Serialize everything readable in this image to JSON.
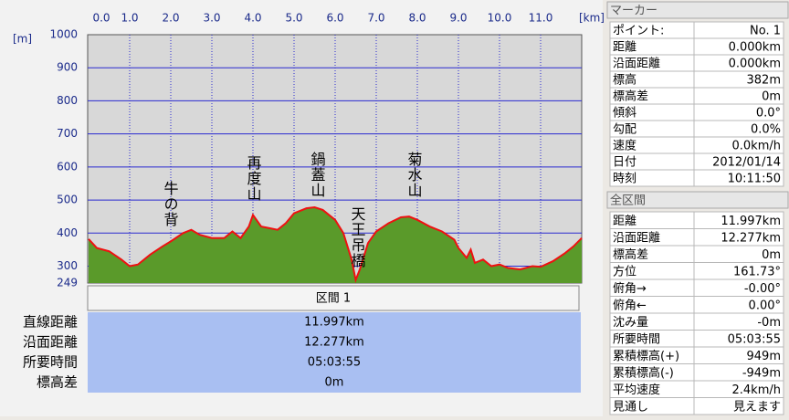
{
  "chart_data": {
    "type": "area",
    "x_label": "[km]",
    "y_label": "[m]",
    "xlim": [
      0,
      12
    ],
    "ylim": [
      249,
      1000
    ],
    "xticks": [
      {
        "value": 0,
        "label": "0.0"
      },
      {
        "value": 1,
        "label": "1.0"
      },
      {
        "value": 2,
        "label": "2.0"
      },
      {
        "value": 3,
        "label": "3.0"
      },
      {
        "value": 4,
        "label": "4.0"
      },
      {
        "value": 5,
        "label": "5.0"
      },
      {
        "value": 6,
        "label": "6.0"
      },
      {
        "value": 7,
        "label": "7.0"
      },
      {
        "value": 8,
        "label": "8.0"
      },
      {
        "value": 9,
        "label": "9.0"
      },
      {
        "value": 10,
        "label": "10.0"
      },
      {
        "value": 11,
        "label": "11.0"
      }
    ],
    "yticks": [
      249,
      300,
      400,
      500,
      600,
      700,
      800,
      900,
      1000
    ],
    "grid": true,
    "x": [
      0,
      0.2,
      0.5,
      0.8,
      1.0,
      1.2,
      1.5,
      1.8,
      2.0,
      2.3,
      2.5,
      2.7,
      3.0,
      3.3,
      3.5,
      3.7,
      3.9,
      4.0,
      4.2,
      4.4,
      4.6,
      4.8,
      5.0,
      5.3,
      5.5,
      5.7,
      6.0,
      6.2,
      6.4,
      6.5,
      6.6,
      6.8,
      7.0,
      7.3,
      7.6,
      7.8,
      8.0,
      8.3,
      8.6,
      8.9,
      9.0,
      9.2,
      9.3,
      9.4,
      9.6,
      9.8,
      10.0,
      10.2,
      10.5,
      10.8,
      11.0,
      11.3,
      11.6,
      11.8,
      12.0
    ],
    "series": [
      {
        "color": "#ee1111",
        "fill": "#5a9a2a",
        "values": [
          382,
          355,
          345,
          320,
          300,
          305,
          335,
          360,
          375,
          400,
          410,
          395,
          385,
          385,
          405,
          385,
          420,
          455,
          420,
          415,
          410,
          430,
          460,
          475,
          478,
          470,
          440,
          400,
          320,
          258,
          290,
          370,
          405,
          430,
          448,
          450,
          440,
          420,
          405,
          380,
          355,
          325,
          350,
          310,
          320,
          300,
          305,
          295,
          290,
          300,
          298,
          315,
          340,
          360,
          385
        ]
      }
    ],
    "annotations": [
      "牛の背",
      "再度山",
      "鍋蓋山",
      "天王吊橋",
      "菊水山"
    ]
  },
  "interval": {
    "title": "区間 1",
    "rows": [
      [
        "直線距離",
        "11.997km"
      ],
      [
        "沿面距離",
        "12.277km"
      ],
      [
        "所要時間",
        "05:03:55"
      ],
      [
        "標高差",
        "0m"
      ]
    ]
  },
  "marker_panel": {
    "title": "マーカー",
    "rows": [
      [
        "ポイント:",
        "No. 1"
      ],
      [
        "距離",
        "0.000km"
      ],
      [
        "沿面距離",
        "0.000km"
      ],
      [
        "標高",
        "382m"
      ],
      [
        "標高差",
        "0m"
      ],
      [
        "傾斜",
        "0.0°"
      ],
      [
        "勾配",
        "0.0%"
      ],
      [
        "速度",
        "0.0km/h"
      ],
      [
        "日付",
        "2012/01/14"
      ],
      [
        "時刻",
        "10:11:50"
      ]
    ]
  },
  "total_panel": {
    "title": "全区間",
    "rows": [
      [
        "距離",
        "11.997km"
      ],
      [
        "沿面距離",
        "12.277km"
      ],
      [
        "標高差",
        "0m"
      ],
      [
        "方位",
        "161.73°"
      ],
      [
        "俯角→",
        "-0.00°"
      ],
      [
        "俯角←",
        "0.00°"
      ],
      [
        "沈み量",
        "-0m"
      ],
      [
        "所要時間",
        "05:03:55"
      ],
      [
        "累積標高(+)",
        "949m"
      ],
      [
        "累積標高(-)",
        "-949m"
      ],
      [
        "平均速度",
        "2.4km/h"
      ],
      [
        "見通し",
        "見えます"
      ]
    ]
  }
}
